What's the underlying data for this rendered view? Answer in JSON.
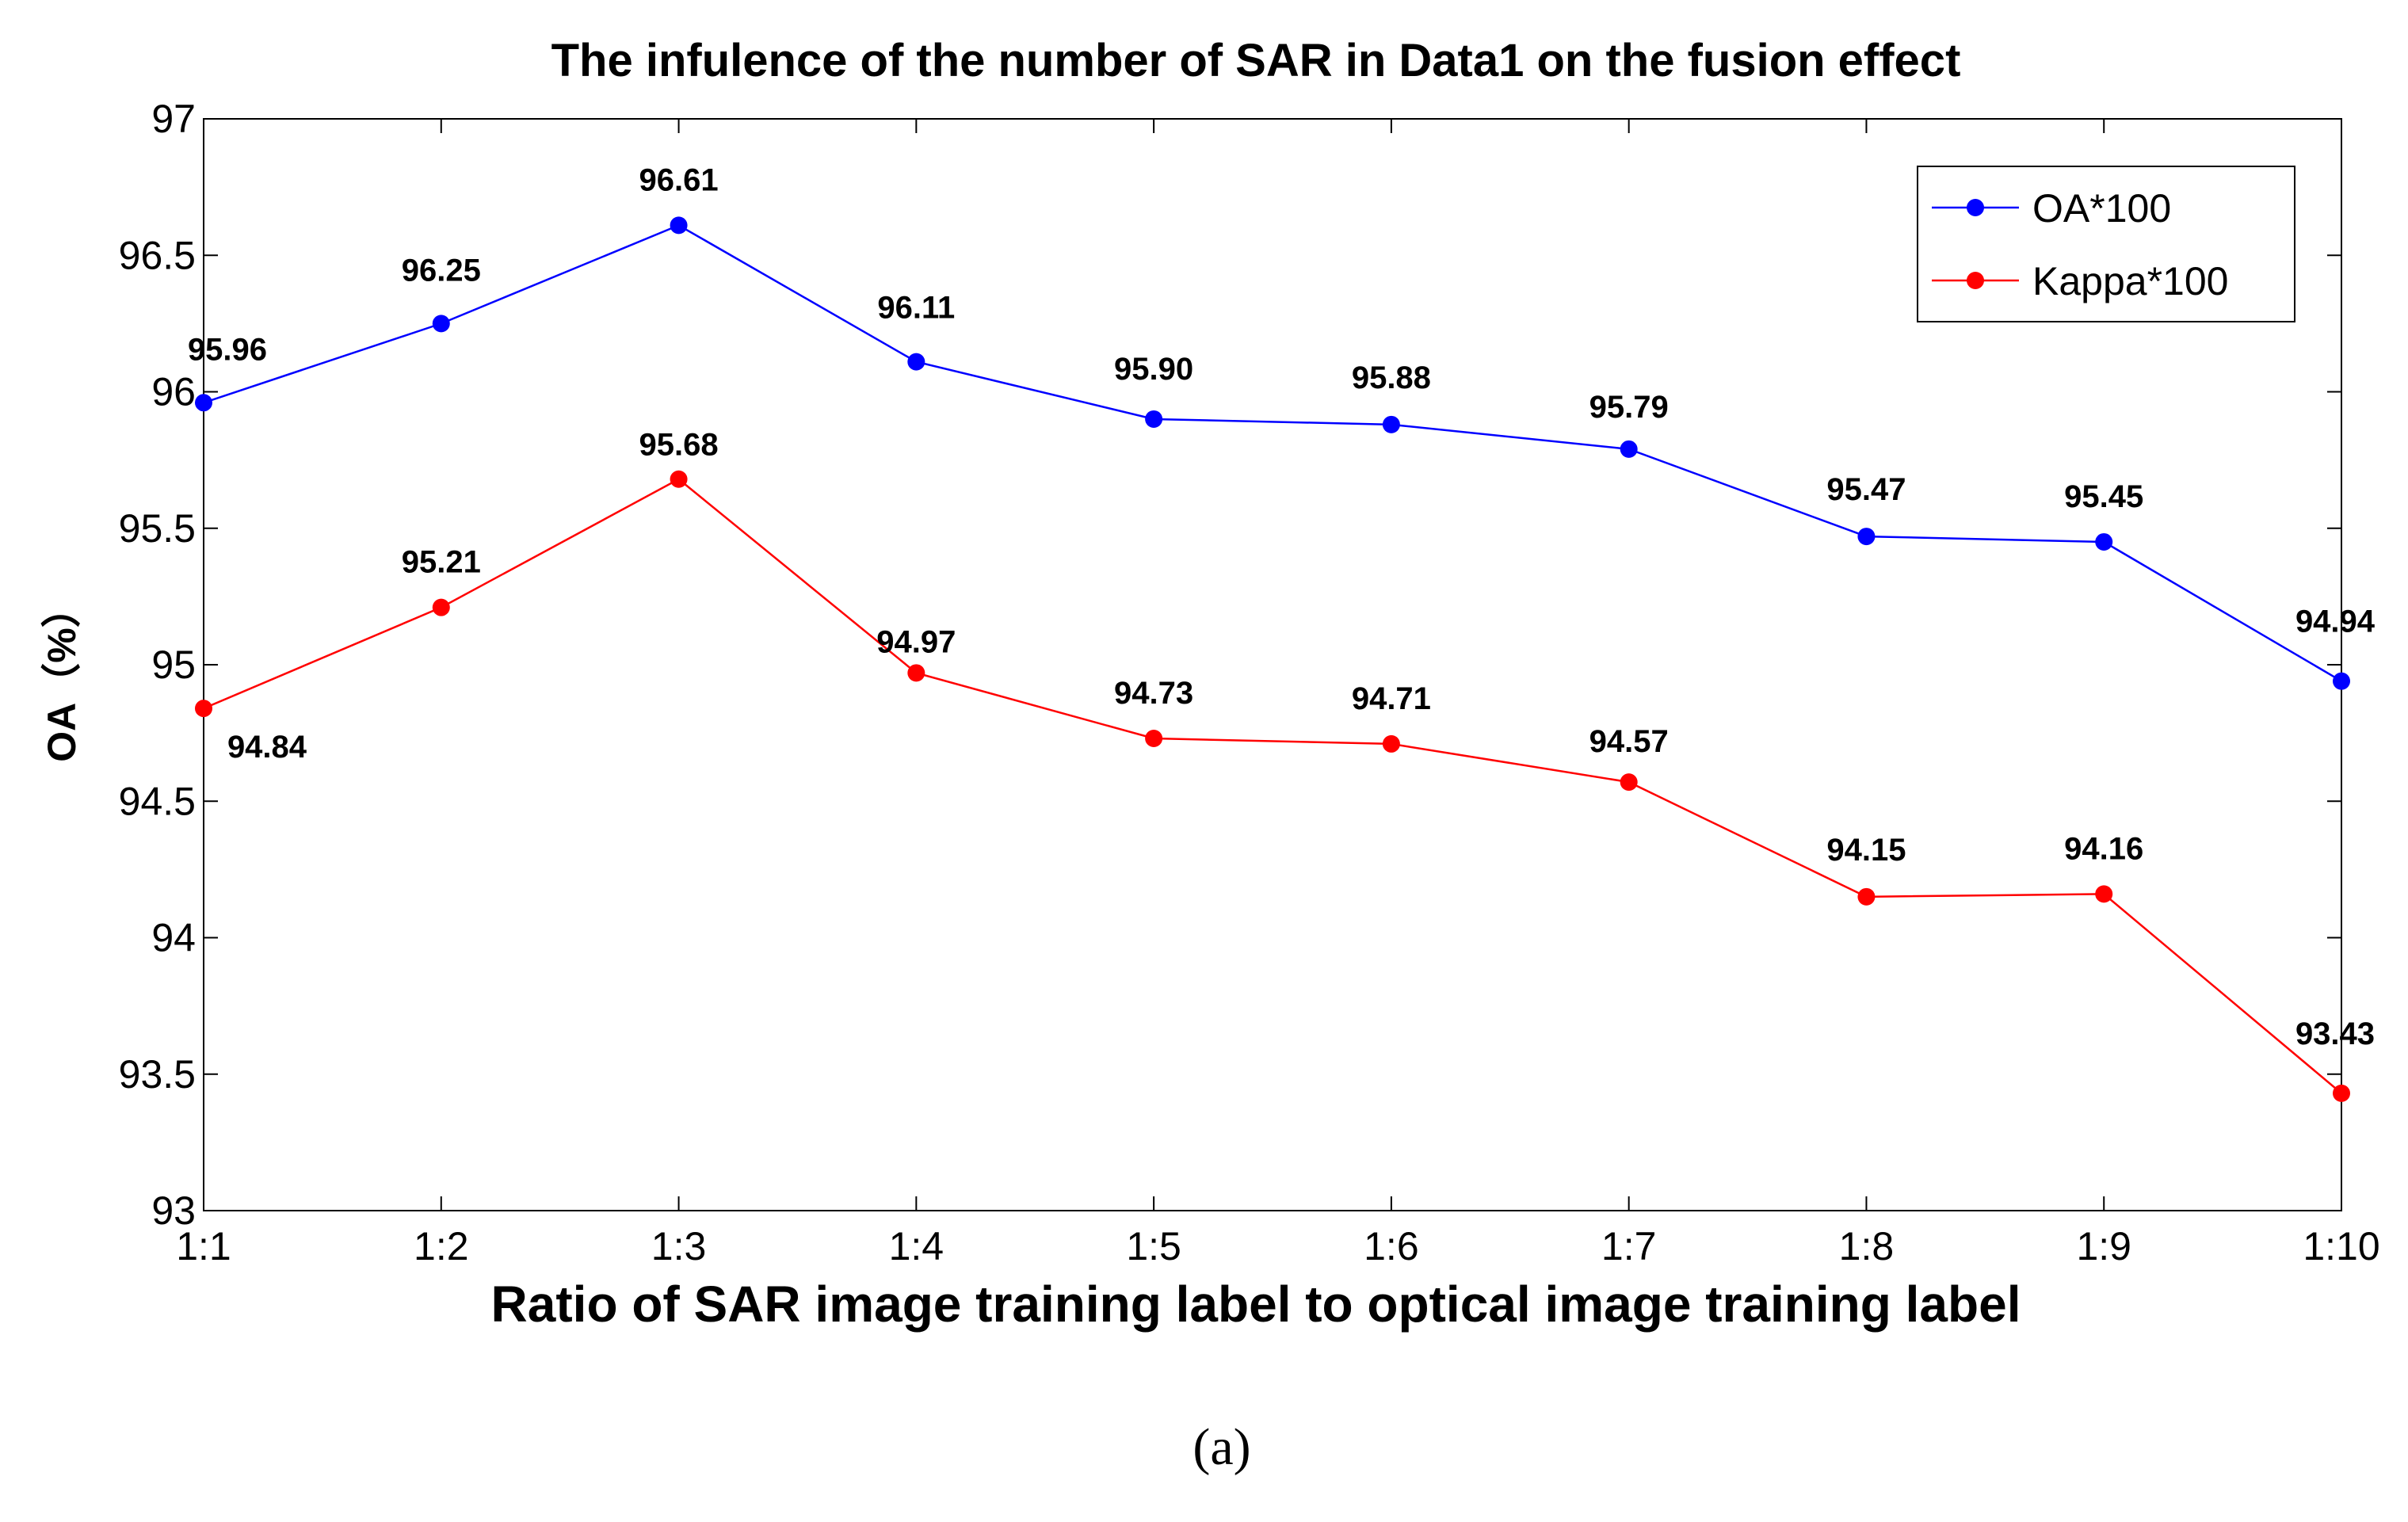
{
  "chart_data": {
    "type": "line",
    "title": "The infulence of the number of SAR in Data1 on the fusion effect",
    "xlabel": "Ratio of SAR image training label to optical image training label",
    "ylabel": "OA（%）",
    "categories": [
      "1:1",
      "1:2",
      "1:3",
      "1:4",
      "1:5",
      "1:6",
      "1:7",
      "1:8",
      "1:9",
      "1:10"
    ],
    "ylim": [
      93,
      97
    ],
    "yticks": [
      "93",
      "93.5",
      "94",
      "94.5",
      "95",
      "95.5",
      "96",
      "96.5",
      "97"
    ],
    "legend_position": "top-right",
    "series": [
      {
        "name": "OA*100",
        "color": "#0000ff",
        "values": [
          95.96,
          96.25,
          96.61,
          96.11,
          95.9,
          95.88,
          95.79,
          95.47,
          95.45,
          94.94
        ],
        "labels": [
          "95.96",
          "96.25",
          "96.61",
          "96.11",
          "95.90",
          "95.88",
          "95.79",
          "95.47",
          "95.45",
          "94.94"
        ]
      },
      {
        "name": "Kappa*100",
        "color": "#ff0000",
        "values": [
          94.84,
          95.21,
          95.68,
          94.97,
          94.73,
          94.71,
          94.57,
          94.15,
          94.16,
          93.43
        ],
        "labels": [
          "94.84",
          "95.21",
          "95.68",
          "94.97",
          "94.73",
          "94.71",
          "94.57",
          "94.15",
          "94.16",
          "93.43"
        ]
      }
    ]
  },
  "caption": "(a)"
}
